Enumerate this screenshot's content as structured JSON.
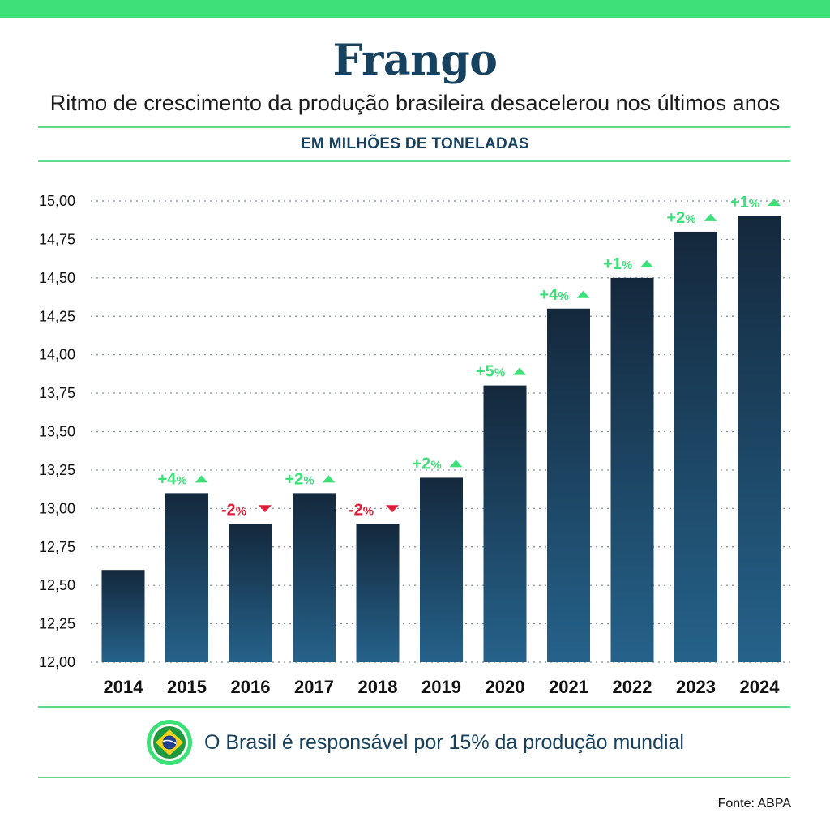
{
  "header": {
    "title": "Frango",
    "subtitle": "Ritmo de crescimento da produção brasileira desacelerou nos últimos anos",
    "units_label": "EM MILHÕES DE TONELADAS"
  },
  "colors": {
    "accent_green": "#3ee07a",
    "bar_top": "#14283c",
    "bar_bottom": "#25628a",
    "change_up": "#3ee07a",
    "change_down": "#e0203a",
    "title_navy": "#17425f"
  },
  "chart_data": {
    "type": "bar",
    "categories": [
      "2014",
      "2015",
      "2016",
      "2017",
      "2018",
      "2019",
      "2020",
      "2021",
      "2022",
      "2023",
      "2024"
    ],
    "values": [
      12.6,
      13.1,
      12.9,
      13.1,
      12.9,
      13.2,
      13.8,
      14.3,
      14.5,
      14.8,
      14.9
    ],
    "change_labels": [
      "",
      "+4%",
      "-2%",
      "+2%",
      "-2%",
      "+2%",
      "+5%",
      "+4%",
      "+1%",
      "+2%",
      "+1%"
    ],
    "change_direction": [
      "",
      "up",
      "down",
      "up",
      "down",
      "up",
      "up",
      "up",
      "up",
      "up",
      "up"
    ],
    "ylim": [
      12.0,
      15.0
    ],
    "yticks": [
      "12,00",
      "12,25",
      "12,50",
      "12,75",
      "13,00",
      "13,25",
      "13,50",
      "13,75",
      "14,00",
      "14,25",
      "14,50",
      "14,75",
      "15,00"
    ],
    "grid": "horizontal dotted",
    "title": "Frango",
    "xlabel": "",
    "ylabel": ""
  },
  "footer": {
    "note": "O Brasil é responsável por 15% da produção mundial",
    "flag_icon": "brazil-flag-icon",
    "source": "Fonte: ABPA"
  }
}
